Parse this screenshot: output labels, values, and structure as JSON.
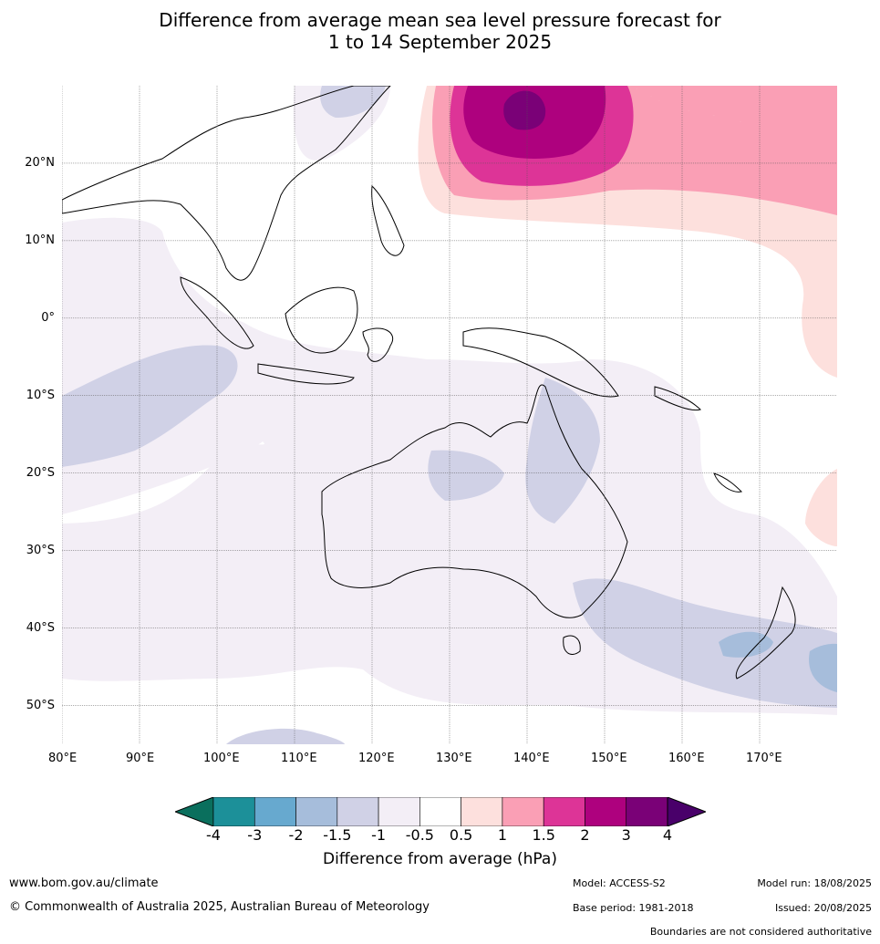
{
  "title": {
    "line1": "Difference from average mean sea level pressure forecast for",
    "line2": "1 to 14 September 2025"
  },
  "map": {
    "lon_range": [
      80,
      180
    ],
    "lat_range": [
      -55,
      30
    ],
    "lat_labels": [
      {
        "value": 20,
        "text": "20°N"
      },
      {
        "value": 10,
        "text": "10°N"
      },
      {
        "value": 0,
        "text": "0°"
      },
      {
        "value": -10,
        "text": "10°S"
      },
      {
        "value": -20,
        "text": "20°S"
      },
      {
        "value": -30,
        "text": "30°S"
      },
      {
        "value": -40,
        "text": "40°S"
      },
      {
        "value": -50,
        "text": "50°S"
      }
    ],
    "lon_labels": [
      {
        "value": 80,
        "text": "80°E"
      },
      {
        "value": 90,
        "text": "90°E"
      },
      {
        "value": 100,
        "text": "100°E"
      },
      {
        "value": 110,
        "text": "110°E"
      },
      {
        "value": 120,
        "text": "120°E"
      },
      {
        "value": 130,
        "text": "130°E"
      },
      {
        "value": 140,
        "text": "140°E"
      },
      {
        "value": 150,
        "text": "150°E"
      },
      {
        "value": 160,
        "text": "160°E"
      },
      {
        "value": 170,
        "text": "170°E"
      }
    ]
  },
  "colorbar": {
    "label": "Difference from average (hPa)",
    "ticks": [
      "-4",
      "-3",
      "-2",
      "-1.5",
      "-1",
      "-0.5",
      "0.5",
      "1",
      "1.5",
      "2",
      "3",
      "4"
    ],
    "colors": {
      "below": "#0a6f5d",
      "bins": [
        "#1c9099",
        "#67a9cf",
        "#a6bddb",
        "#d0d1e6",
        "#f3eef6",
        "#ffffff",
        "#fde0dd",
        "#fa9fb5",
        "#dd3497",
        "#ae017e",
        "#7a0177"
      ],
      "above": "#49006a"
    }
  },
  "footer": {
    "website": "www.bom.gov.au/climate",
    "copyright": "© Commonwealth of Australia 2025, Australian Bureau of Meteorology",
    "model": "Model: ACCESS-S2",
    "base_period": "Base period: 1981-2018",
    "model_run": "Model run: 18/08/2025",
    "issued": "Issued: 20/08/2025",
    "disclaimer": "Boundaries are not considered authoritative"
  }
}
